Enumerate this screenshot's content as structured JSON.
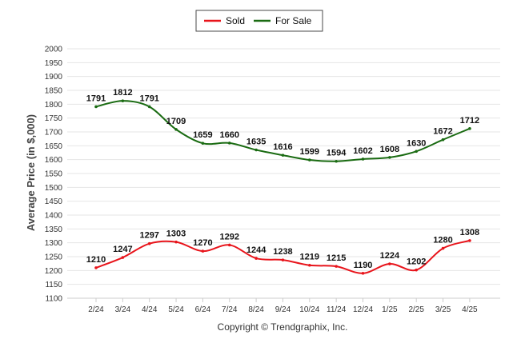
{
  "chart_data": {
    "type": "line",
    "title": "",
    "xlabel": "",
    "ylabel": "Average Price (in $,000)",
    "ylim": [
      1100,
      2000
    ],
    "ytick_step": 50,
    "grid": true,
    "legend_position": "top-center",
    "categories": [
      "2/24",
      "3/24",
      "4/24",
      "5/24",
      "6/24",
      "7/24",
      "8/24",
      "9/24",
      "10/24",
      "11/24",
      "12/24",
      "1/25",
      "2/25",
      "3/25",
      "4/25"
    ],
    "series": [
      {
        "name": "Sold",
        "color": "#e8141b",
        "values": [
          1210,
          1247,
          1297,
          1303,
          1270,
          1292,
          1244,
          1238,
          1219,
          1215,
          1190,
          1224,
          1202,
          1280,
          1308
        ]
      },
      {
        "name": "For Sale",
        "color": "#1a6b12",
        "values": [
          1791,
          1812,
          1791,
          1709,
          1659,
          1660,
          1635,
          1616,
          1599,
          1594,
          1602,
          1608,
          1630,
          1672,
          1712
        ]
      }
    ]
  },
  "footer": {
    "copyright": "Copyright © Trendgraphix, Inc."
  }
}
